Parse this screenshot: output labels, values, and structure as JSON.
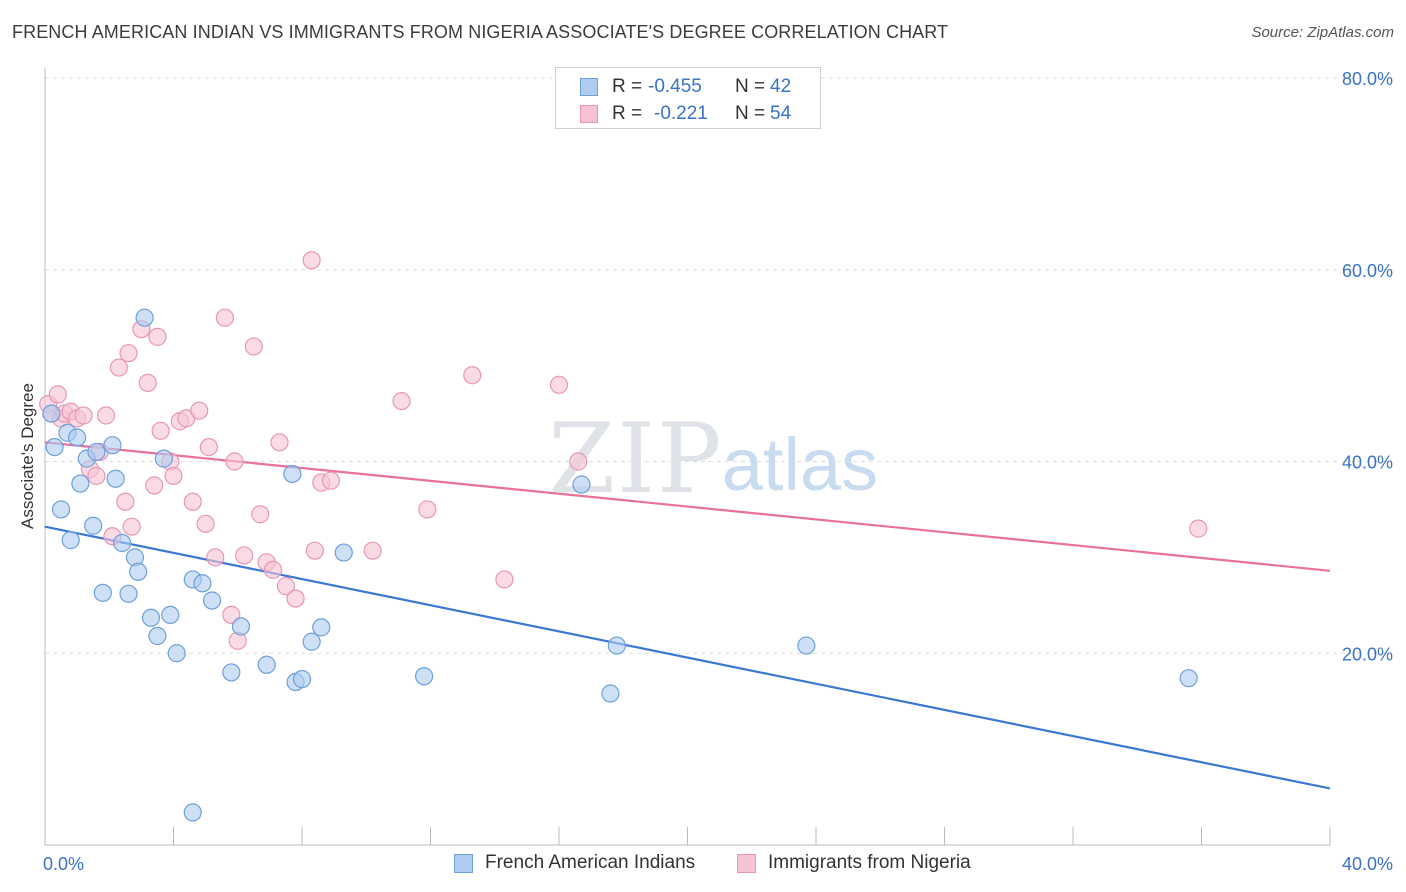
{
  "title": "FRENCH AMERICAN INDIAN VS IMMIGRANTS FROM NIGERIA ASSOCIATE'S DEGREE CORRELATION CHART",
  "source": "Source: ZipAtlas.com",
  "watermark": {
    "zip": "ZIP",
    "atlas": "atlas"
  },
  "legend": {
    "r_label": "R =",
    "n_label": "N =",
    "series1": {
      "r": "-0.455",
      "n": "42"
    },
    "series2": {
      "r": "-0.221",
      "n": "54"
    }
  },
  "colors": {
    "blue_fill": "#aecbf0",
    "blue_stroke": "#6f9fd9",
    "blue_line": "#3a78d4",
    "pink_fill": "#f7c3d3",
    "pink_stroke": "#e897b2",
    "pink_line": "#e8709a",
    "grid": "#dddddd",
    "tick_label": "#3a72c8"
  },
  "chart_data": {
    "type": "scatter",
    "title": "FRENCH AMERICAN INDIAN VS IMMIGRANTS FROM NIGERIA ASSOCIATE'S DEGREE CORRELATION CHART",
    "xlabel": "",
    "ylabel": "Associate's Degree",
    "xlim": [
      0,
      40
    ],
    "ylim": [
      0,
      80
    ],
    "x_tick_labels": [
      "0.0%",
      "40.0%"
    ],
    "y_ticks": [
      20,
      40,
      60,
      80
    ],
    "y_tick_labels": [
      "20.0%",
      "40.0%",
      "60.0%",
      "80.0%"
    ],
    "grid": true,
    "legend_position": "top-center",
    "series": [
      {
        "name": "French American Indians",
        "color": "#6f9fd9",
        "r": -0.455,
        "n": 42,
        "trend": {
          "x": [
            0,
            40
          ],
          "y": [
            33.2,
            5.9
          ]
        },
        "points": [
          [
            0.2,
            45.0
          ],
          [
            0.3,
            41.5
          ],
          [
            0.5,
            35.0
          ],
          [
            0.8,
            31.8
          ],
          [
            0.7,
            43.0
          ],
          [
            1.0,
            42.5
          ],
          [
            1.1,
            37.7
          ],
          [
            1.3,
            40.3
          ],
          [
            1.5,
            33.3
          ],
          [
            1.6,
            41.0
          ],
          [
            1.8,
            26.3
          ],
          [
            2.1,
            41.7
          ],
          [
            2.2,
            38.2
          ],
          [
            2.4,
            31.5
          ],
          [
            2.6,
            26.2
          ],
          [
            2.8,
            30.0
          ],
          [
            2.9,
            28.5
          ],
          [
            3.1,
            55.0
          ],
          [
            3.3,
            23.7
          ],
          [
            3.5,
            21.8
          ],
          [
            3.7,
            40.3
          ],
          [
            3.9,
            24.0
          ],
          [
            4.1,
            20.0
          ],
          [
            4.6,
            27.7
          ],
          [
            4.9,
            27.3
          ],
          [
            5.2,
            25.5
          ],
          [
            5.8,
            18.0
          ],
          [
            6.1,
            22.8
          ],
          [
            6.9,
            18.8
          ],
          [
            7.7,
            38.7
          ],
          [
            7.8,
            17.0
          ],
          [
            8.0,
            17.3
          ],
          [
            8.3,
            21.2
          ],
          [
            8.6,
            22.7
          ],
          [
            9.3,
            30.5
          ],
          [
            4.6,
            3.4
          ],
          [
            11.8,
            17.6
          ],
          [
            16.7,
            37.6
          ],
          [
            17.8,
            20.8
          ],
          [
            17.6,
            15.8
          ],
          [
            23.7,
            20.8
          ],
          [
            35.6,
            17.4
          ]
        ]
      },
      {
        "name": "Immigrants from Nigeria",
        "color": "#e897b2",
        "r": -0.221,
        "n": 54,
        "trend": {
          "x": [
            0,
            40
          ],
          "y": [
            42.0,
            28.6
          ]
        },
        "points": [
          [
            0.1,
            46.0
          ],
          [
            0.2,
            45.0
          ],
          [
            0.4,
            47.0
          ],
          [
            0.5,
            44.5
          ],
          [
            0.6,
            45.0
          ],
          [
            0.8,
            45.2
          ],
          [
            1.0,
            44.5
          ],
          [
            1.2,
            44.8
          ],
          [
            1.4,
            39.2
          ],
          [
            1.6,
            38.5
          ],
          [
            1.7,
            41.0
          ],
          [
            1.9,
            44.8
          ],
          [
            2.1,
            32.2
          ],
          [
            2.3,
            49.8
          ],
          [
            2.5,
            35.8
          ],
          [
            2.6,
            51.3
          ],
          [
            2.7,
            33.2
          ],
          [
            3.0,
            53.8
          ],
          [
            3.2,
            48.2
          ],
          [
            3.4,
            37.5
          ],
          [
            3.5,
            53.0
          ],
          [
            3.6,
            43.2
          ],
          [
            3.9,
            40.0
          ],
          [
            4.0,
            38.5
          ],
          [
            4.2,
            44.2
          ],
          [
            4.4,
            44.5
          ],
          [
            4.6,
            35.8
          ],
          [
            4.8,
            45.3
          ],
          [
            5.0,
            33.5
          ],
          [
            5.1,
            41.5
          ],
          [
            5.3,
            30.0
          ],
          [
            5.6,
            55.0
          ],
          [
            5.8,
            24.0
          ],
          [
            5.9,
            40.0
          ],
          [
            6.0,
            21.3
          ],
          [
            6.2,
            30.2
          ],
          [
            6.5,
            52.0
          ],
          [
            6.7,
            34.5
          ],
          [
            6.9,
            29.5
          ],
          [
            7.1,
            28.7
          ],
          [
            7.3,
            42.0
          ],
          [
            7.5,
            27.0
          ],
          [
            7.8,
            25.7
          ],
          [
            8.3,
            61.0
          ],
          [
            8.4,
            30.7
          ],
          [
            8.6,
            37.8
          ],
          [
            8.9,
            38.0
          ],
          [
            10.2,
            30.7
          ],
          [
            11.1,
            46.3
          ],
          [
            11.9,
            35.0
          ],
          [
            13.3,
            49.0
          ],
          [
            14.3,
            27.7
          ],
          [
            16.0,
            48.0
          ],
          [
            16.6,
            40.0
          ],
          [
            35.9,
            33.0
          ]
        ]
      }
    ]
  },
  "bottom_legend": {
    "series1": "French American Indians",
    "series2": "Immigrants from Nigeria"
  }
}
